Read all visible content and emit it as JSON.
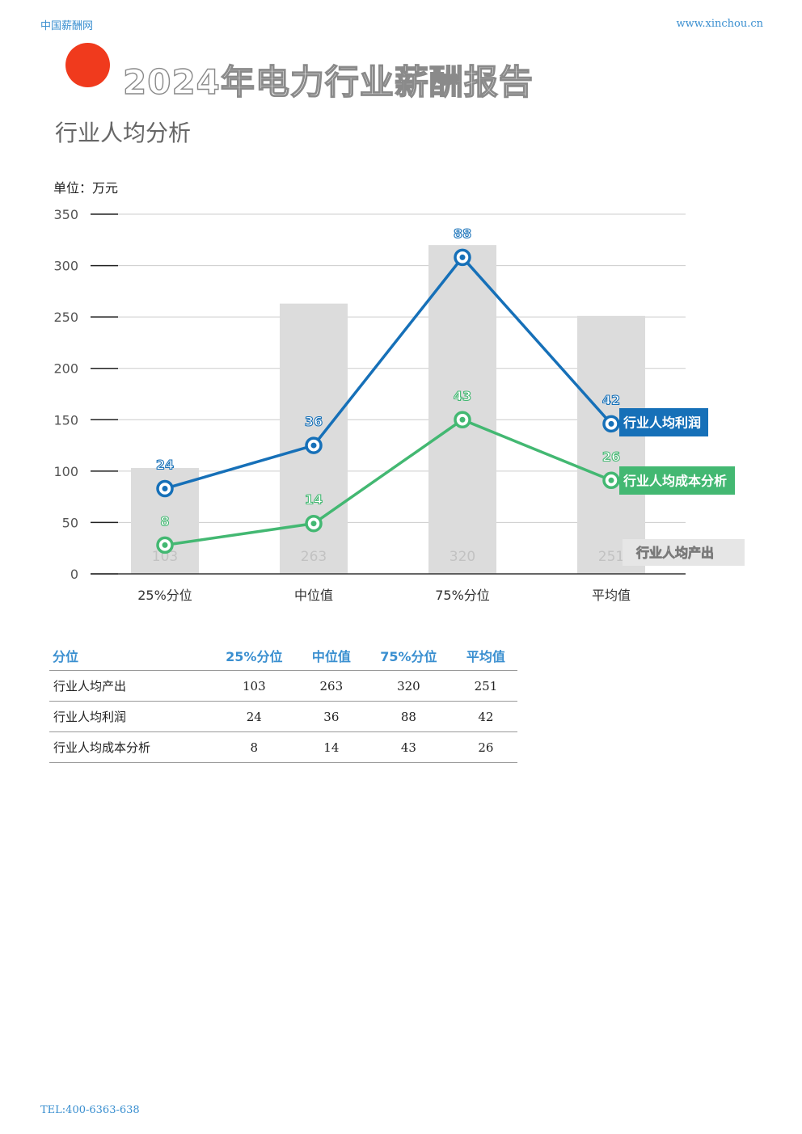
{
  "header": {
    "brand": "中国薪酬网",
    "site": "www.xinchou.cn"
  },
  "title": "2024年电力行业薪酬报告",
  "subtitle": "行业人均分析",
  "footer": {
    "tel": "TEL:400-6363-638"
  },
  "colors": {
    "accent_dot": "#f03a1d",
    "profit": "#1670b8",
    "cost": "#43b872",
    "output": "#dcdcdc",
    "header_text": "#3a8fd0"
  },
  "chart_data": {
    "type": "bar",
    "unit_label": "单位：万元",
    "categories": [
      "25%分位",
      "中位值",
      "75%分位",
      "平均值"
    ],
    "ylim": [
      0,
      350
    ],
    "yticks": [
      0,
      50,
      100,
      150,
      200,
      250,
      300,
      350
    ],
    "grid": true,
    "bar_series": {
      "name": "行业人均产出",
      "values": [
        103,
        263,
        320,
        251
      ]
    },
    "line_series": [
      {
        "name": "行业人均利润",
        "labels": [
          24,
          36,
          88,
          42
        ],
        "y": [
          83,
          125,
          308,
          146
        ]
      },
      {
        "name": "行业人均成本分析",
        "labels": [
          8,
          14,
          43,
          26
        ],
        "y": [
          28,
          49,
          150,
          91
        ]
      }
    ],
    "legend_placement": "right"
  },
  "table": {
    "headers": [
      "分位",
      "25%分位",
      "中位值",
      "75%分位",
      "平均值"
    ],
    "rows": [
      {
        "label": "行业人均产出",
        "values": [
          "103",
          "263",
          "320",
          "251"
        ]
      },
      {
        "label": "行业人均利润",
        "values": [
          "24",
          "36",
          "88",
          "42"
        ]
      },
      {
        "label": "行业人均成本分析",
        "values": [
          "8",
          "14",
          "43",
          "26"
        ]
      }
    ]
  }
}
